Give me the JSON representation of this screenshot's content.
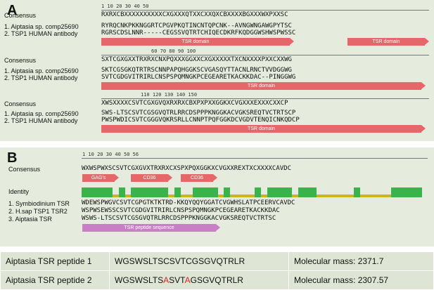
{
  "panelA": {
    "label": "A",
    "rows": [
      {
        "ruler": "1         10        20        30        40        50",
        "consensus_label": "Consensus",
        "consensus": "RXRXCBXXXXXXXXXXCXGXXXQTXXCXXQXCBXXXXBGXXXWXPXXSC",
        "seq1_label": "1. Aiptasia sp. comp25690",
        "seq1": "RYRQCNKPKKNGGRTCPGVPKQTINCNTQPCNK--AVNGWNGAWGPYTSC",
        "seq2_label": "2. TSP1 HUMAN antibody",
        "seq2": "RGRSCDSLNNR-----CEGSSVQTRTCHIQECDKRFKQDGGWSHWSPWSSC",
        "domain1": "TSR domain",
        "domain2": "TSR domain"
      },
      {
        "ruler": "60        70        80        90        100",
        "consensus": "SXTCGXGXXTRXRXCNXPQXXXGGXXCXGXXXXXTXCNXXXXPXXCXXWG",
        "seq1": "SKTCGSGKQTRTRSCNNPAPQHGGKSCVGASQYTTACNLRNCTVVDGGWG",
        "seq2": "SVTCGDGVITRIRLCNSPSPQMNGKPCEGEARETKACKKDAC--PINGGWG",
        "domain1": "TSR domain"
      },
      {
        "ruler": "110       120       130       140       150",
        "consensus": "XWSXXXXCSVTCGXGVQXRXRXCBXPXPXXGGKXCVGXXXEXXXCXXCP",
        "seq1": "SWS-LTSCSVTCGSGVQTRLRRCDSPPPKNGGKACVGKSREQTVCTRTSCP",
        "seq2": "PWSPWDICSVTCGGGVQKRSRLLCNNPTPQFGGKDCVGDVTENQICNKQDCP",
        "domain1": "TSR domain"
      }
    ]
  },
  "panelB": {
    "label": "B",
    "ruler": "1         10        20        30        40        50      56",
    "consensus_label": "Consensus",
    "consensus": "WXWSPWXSCSVTCGXGVXTRXRXCXSPXPQXGGKXCVGXXREXTXCXXXXCAVDC",
    "annotations": [
      "GAG's",
      "CD36",
      "CD36"
    ],
    "identity_label": "Identity",
    "seq1_label": "1. Symbiodinium TSR",
    "seq1": "WDEWSPWGVCSVTCGPGTKTKTRD-KKQYQQYGGATCVGWHSLATPCEERVCAVDC",
    "seq2_label": "2. H.sap TSP1 TSR2",
    "seq2": "WSPWSEWSSCSVTCGDGVITRIRLCNSPSPQMNGKPCEGEARETKACKKDAC",
    "seq3_label": "3. Aiptasia TSR",
    "seq3": "WSWS-LTSCSVTCGSGVQTRLRRCDSPPPKNGGKACVGKSREQTVCTRTSC",
    "peptide_domain": "TSR peptide sequence",
    "identity_levels": [
      1,
      1,
      1,
      1,
      1,
      0.3,
      1,
      0.3,
      1,
      1,
      1,
      1,
      1,
      1,
      0.3,
      1,
      0.3,
      0.3,
      1,
      1,
      1,
      1,
      0.3,
      1,
      0.3,
      0.3,
      0.3,
      0.3,
      1,
      0.3,
      1,
      1,
      1,
      1,
      0.3,
      1,
      1,
      1,
      0.3,
      0.3,
      0.3,
      0.3,
      0.3,
      0.3,
      1,
      0.3,
      0.3,
      0.3,
      0.3,
      0.3,
      1,
      1,
      1,
      1,
      1
    ]
  },
  "peptides": [
    {
      "name": "Aiptasia TSR peptide 1",
      "sequence_parts": [
        "WGSWSLTSCSVTCGSGVQTRLR",
        "",
        "",
        "",
        ""
      ],
      "mass": "Molecular mass: 2371.7"
    },
    {
      "name": "Aiptasia TSR peptide 2",
      "sequence_parts": [
        "WGSWSLTS",
        "A",
        "SVT",
        "A",
        "GSGVQTRLR"
      ],
      "mass": "Molecular mass: 2307.57"
    }
  ],
  "colors": {
    "panel_bg": "#e6ecdd",
    "domain": "#e5676a",
    "peptide_domain": "#c97fc5",
    "identity_high": "#3ab34a",
    "identity_low": "#c9b81a",
    "highlight": "#111111",
    "mutation": "#e02020"
  }
}
